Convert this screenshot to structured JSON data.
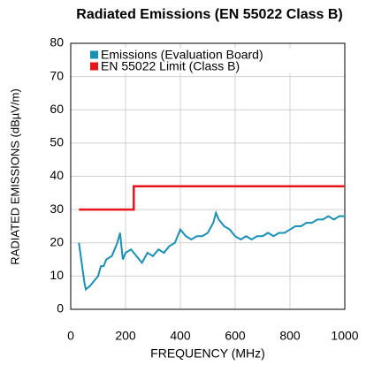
{
  "chart_data": {
    "type": "line",
    "title": "Radiated Emissions (EN 55022 Class B)",
    "xlabel": "FREQUENCY (MHz)",
    "ylabel": "RADIATED EMISSIONS (dBµV/m)",
    "xlim": [
      0,
      1000
    ],
    "xticks": [
      0,
      200,
      400,
      600,
      800,
      1000
    ],
    "ylim": [
      0,
      80
    ],
    "yticks": [
      0,
      10,
      20,
      30,
      40,
      50,
      60,
      70,
      80
    ],
    "grid": true,
    "legend": "upper left",
    "series": [
      {
        "name": "Emissions (Evaluation Board)",
        "color": "#1a8fb5",
        "x": [
          30,
          40,
          50,
          55,
          70,
          90,
          100,
          110,
          120,
          130,
          150,
          170,
          180,
          190,
          200,
          220,
          240,
          260,
          280,
          300,
          320,
          340,
          360,
          380,
          400,
          420,
          440,
          460,
          480,
          500,
          520,
          530,
          540,
          560,
          580,
          600,
          620,
          640,
          660,
          680,
          700,
          720,
          740,
          760,
          780,
          800,
          820,
          840,
          860,
          880,
          900,
          920,
          940,
          960,
          980,
          1000
        ],
        "values": [
          20,
          14,
          8,
          6,
          7,
          9,
          10,
          13,
          13,
          15,
          16,
          20,
          23,
          15,
          17,
          18,
          16,
          14,
          17,
          16,
          18,
          17,
          19,
          20,
          24,
          22,
          21,
          22,
          22,
          23,
          26,
          29,
          27,
          25,
          24,
          22,
          21,
          22,
          21,
          22,
          22,
          23,
          22,
          23,
          23,
          24,
          25,
          25,
          26,
          26,
          27,
          27,
          28,
          27,
          28,
          28
        ]
      },
      {
        "name": "EN 55022 Limit (Class B)",
        "color": "#e8141c",
        "x": [
          30,
          230,
          230,
          1000
        ],
        "values": [
          30,
          30,
          37,
          37
        ]
      }
    ]
  }
}
